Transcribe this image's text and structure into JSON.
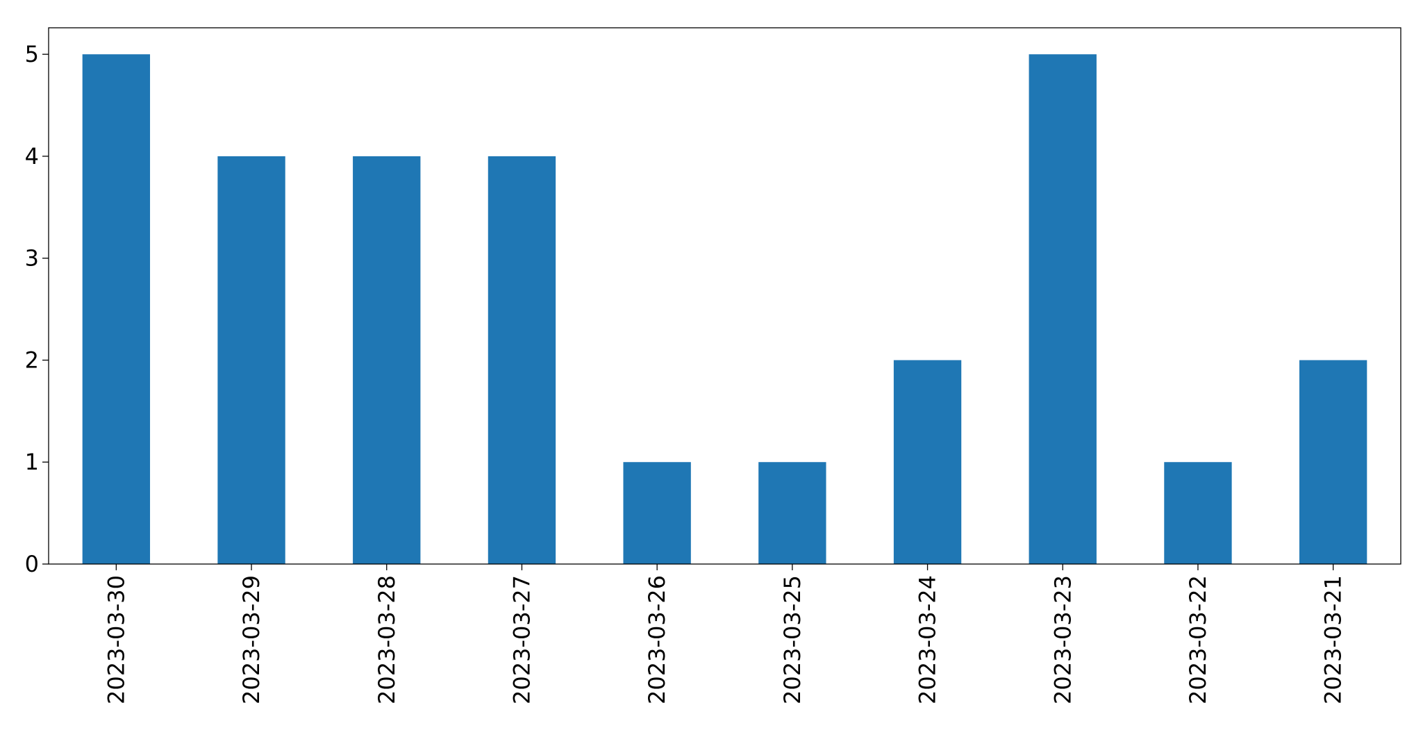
{
  "chart_data": {
    "type": "bar",
    "title": "",
    "xlabel": "",
    "ylabel": "",
    "categories": [
      "2023-03-30",
      "2023-03-29",
      "2023-03-28",
      "2023-03-27",
      "2023-03-26",
      "2023-03-25",
      "2023-03-24",
      "2023-03-23",
      "2023-03-22",
      "2023-03-21"
    ],
    "values": [
      5,
      4,
      4,
      4,
      1,
      1,
      2,
      5,
      1,
      2
    ],
    "ylim": [
      0,
      5.26
    ],
    "yticks": [
      0,
      1,
      2,
      3,
      4,
      5
    ],
    "grid": false,
    "bar_color": "#1f77b4",
    "x_tick_rotation": "vertical"
  }
}
